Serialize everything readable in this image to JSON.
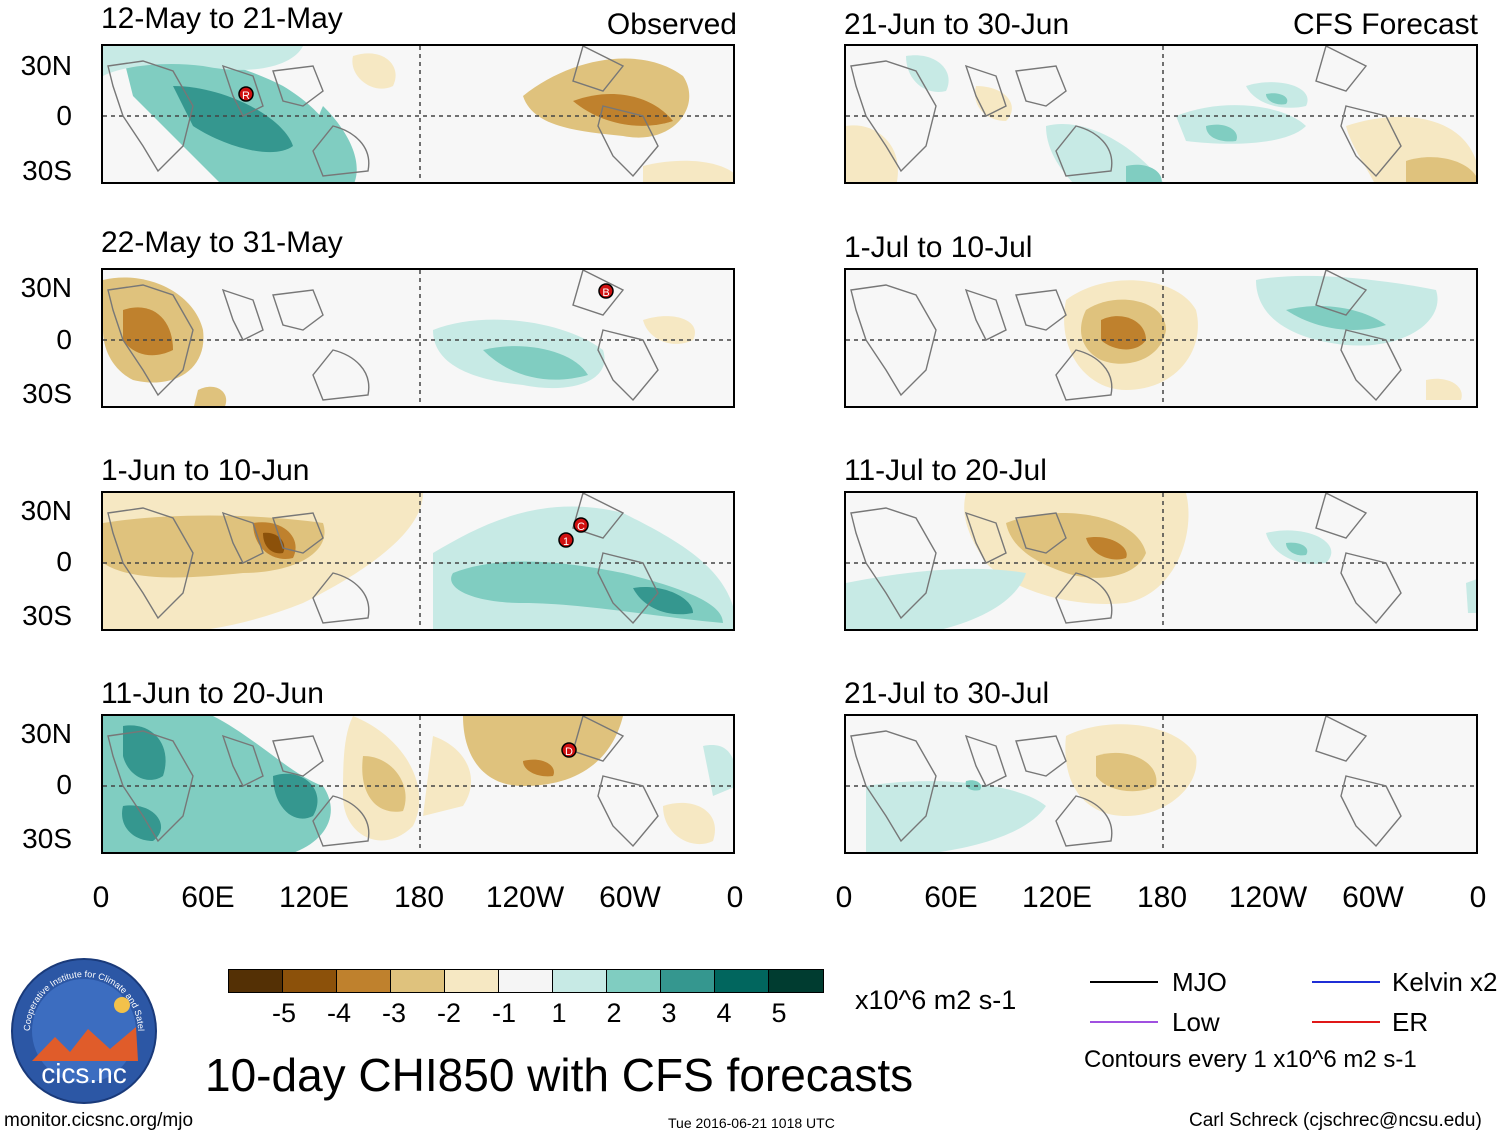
{
  "panels": [
    {
      "title": "12-May to 21-May",
      "tag": "Observed"
    },
    {
      "title": "22-May to 31-May",
      "tag": ""
    },
    {
      "title": "1-Jun to 10-Jun",
      "tag": ""
    },
    {
      "title": "11-Jun to 20-Jun",
      "tag": ""
    },
    {
      "title": "21-Jun to 30-Jun",
      "tag": "CFS Forecast"
    },
    {
      "title": "1-Jul to 10-Jul",
      "tag": ""
    },
    {
      "title": "11-Jul to 20-Jul",
      "tag": ""
    },
    {
      "title": "21-Jul to 30-Jul",
      "tag": ""
    }
  ],
  "lat_labels": [
    "30N",
    "0",
    "30S"
  ],
  "lon_labels": [
    "0",
    "60E",
    "120E",
    "180",
    "120W",
    "60W",
    "0"
  ],
  "markers": [
    "R",
    "B",
    "1",
    "C",
    "D"
  ],
  "colorbar": {
    "colors": [
      "#543005",
      "#8c510a",
      "#bf812d",
      "#dfc27d",
      "#f6e8c3",
      "#f5f5f5",
      "#c7eae5",
      "#80cdc1",
      "#35978f",
      "#01665e",
      "#003c30"
    ],
    "labels": [
      "-5",
      "-4",
      "-3",
      "-2",
      "-1",
      "1",
      "2",
      "3",
      "4",
      "5"
    ],
    "units": "x10^6 m2 s-1"
  },
  "title": "10-day CHI850 with CFS forecasts",
  "legend": [
    {
      "label": "MJO",
      "color": "#000000"
    },
    {
      "label": "Kelvin x2",
      "color": "#1f2ed6"
    },
    {
      "label": "Low",
      "color": "#a050e0"
    },
    {
      "label": "ER",
      "color": "#e01818"
    }
  ],
  "contours_note": "Contours every 1 x10^6 m2 s-1",
  "logo_text": "cics.nc",
  "logo_ring_text": "Cooperative Institute for Climate and Satellites",
  "footer": {
    "left": "monitor.cicsnc.org/mjo",
    "center": "Tue 2016-06-21 1018 UTC",
    "right": "Carl Schreck (cjschrec@ncsu.edu)"
  }
}
